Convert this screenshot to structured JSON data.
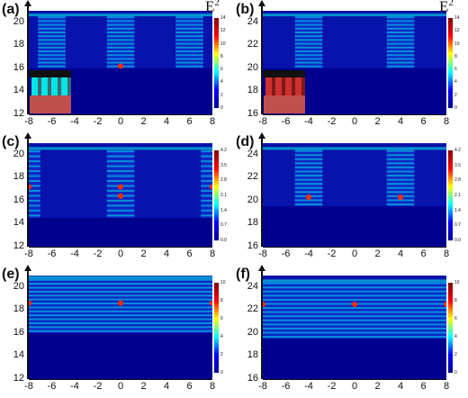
{
  "figure": {
    "colorbar_title_base": "E",
    "colorbar_title_sup": "2"
  },
  "colors": {
    "background": "#00008f",
    "field": "#1a4dff",
    "hot": "#ff2a00",
    "cyan": "#00e6e6",
    "substrate": "#c0504d"
  },
  "chart_data": [
    {
      "panel": "(a)",
      "type": "heatmap",
      "x_ticks": [
        "-8",
        "-6",
        "-4",
        "-2",
        "0",
        "2",
        "4",
        "6",
        "8"
      ],
      "y_ticks": [
        "20",
        "18",
        "16",
        "14",
        "12"
      ],
      "xlim": [
        -8,
        8
      ],
      "ylim": [
        12,
        21
      ],
      "colorbar_ticks": [
        "14",
        "12",
        "10",
        "8",
        "6",
        "4",
        "2",
        "0"
      ],
      "colorbar_range": [
        0,
        14
      ],
      "show_e2_label": true,
      "inset": "cyan",
      "bands": [
        [
          -7.2,
          -4.8
        ],
        [
          -1.2,
          1.2
        ],
        [
          4.8,
          7.2
        ]
      ],
      "stripe_range": [
        16,
        20.6
      ],
      "hot_spots": [
        [
          0,
          16.2
        ]
      ]
    },
    {
      "panel": "(b)",
      "type": "heatmap",
      "x_ticks": [
        "-8",
        "-6",
        "-4",
        "-2",
        "0",
        "2",
        "4",
        "6",
        "8"
      ],
      "y_ticks": [
        "24",
        "22",
        "20",
        "18",
        "16"
      ],
      "xlim": [
        -8,
        8
      ],
      "ylim": [
        16,
        25
      ],
      "colorbar_ticks": [
        "14",
        "12",
        "10",
        "8",
        "6",
        "4",
        "2",
        "0"
      ],
      "colorbar_range": [
        0,
        14
      ],
      "show_e2_label": true,
      "inset": "red",
      "bands": [
        [
          -5.2,
          -2.8
        ],
        [
          2.8,
          5.2
        ]
      ],
      "stripe_range": [
        20,
        24.6
      ],
      "hot_spots": []
    },
    {
      "panel": "(c)",
      "type": "heatmap",
      "x_ticks": [
        "-8",
        "-6",
        "-4",
        "-2",
        "0",
        "2",
        "4",
        "6",
        "8"
      ],
      "y_ticks": [
        "20",
        "18",
        "16",
        "14",
        "12"
      ],
      "xlim": [
        -8,
        8
      ],
      "ylim": [
        12,
        21
      ],
      "colorbar_ticks": [
        "4.2",
        "3.5",
        "2.8",
        "2.1",
        "1.4",
        "0.7",
        "0.0"
      ],
      "colorbar_range": [
        0,
        4.2
      ],
      "show_e2_label": false,
      "inset": "",
      "bands": [
        [
          -8,
          -7
        ],
        [
          -1.2,
          1.2
        ],
        [
          7,
          8
        ]
      ],
      "stripe_range": [
        14.5,
        20.5
      ],
      "hot_spots": [
        [
          0,
          17.2
        ],
        [
          -8,
          17.2
        ],
        [
          8,
          17.2
        ],
        [
          0,
          16.4
        ]
      ]
    },
    {
      "panel": "(d)",
      "type": "heatmap",
      "x_ticks": [
        "-8",
        "-6",
        "-4",
        "-2",
        "0",
        "2",
        "4",
        "6",
        "8"
      ],
      "y_ticks": [
        "24",
        "22",
        "20",
        "18",
        "16"
      ],
      "xlim": [
        -8,
        8
      ],
      "ylim": [
        16,
        25
      ],
      "colorbar_ticks": [
        "4.2",
        "3.5",
        "2.8",
        "2.1",
        "1.4",
        "0.7",
        "0.0"
      ],
      "colorbar_range": [
        0,
        4.2
      ],
      "show_e2_label": false,
      "inset": "",
      "bands": [
        [
          -5.2,
          -2.8
        ],
        [
          2.8,
          5.2
        ]
      ],
      "stripe_range": [
        19.5,
        24.5
      ],
      "hot_spots": [
        [
          -4,
          20.3
        ],
        [
          4,
          20.3
        ]
      ]
    },
    {
      "panel": "(e)",
      "type": "heatmap",
      "x_ticks": [
        "-8",
        "-6",
        "-4",
        "-2",
        "0",
        "2",
        "4",
        "6",
        "8"
      ],
      "y_ticks": [
        "20",
        "18",
        "16",
        "14",
        "12"
      ],
      "xlim": [
        -8,
        8
      ],
      "ylim": [
        12,
        21
      ],
      "colorbar_ticks": [
        "10",
        "8",
        "6",
        "4",
        "2",
        "0"
      ],
      "colorbar_range": [
        0,
        10
      ],
      "show_e2_label": false,
      "inset": "",
      "bands": [
        [
          -8,
          8
        ]
      ],
      "stripe_range": [
        16,
        20.8
      ],
      "hot_spots": [
        [
          0,
          18.6
        ],
        [
          -8,
          18.6
        ],
        [
          8,
          18.6
        ]
      ]
    },
    {
      "panel": "(f)",
      "type": "heatmap",
      "x_ticks": [
        "-8",
        "-6",
        "-4",
        "-2",
        "0",
        "2",
        "4",
        "6",
        "8"
      ],
      "y_ticks": [
        "24",
        "22",
        "20",
        "18",
        "16"
      ],
      "xlim": [
        -8,
        8
      ],
      "ylim": [
        16,
        25
      ],
      "colorbar_ticks": [
        "10",
        "8",
        "6",
        "4",
        "2",
        "0"
      ],
      "colorbar_range": [
        0,
        10
      ],
      "show_e2_label": false,
      "inset": "",
      "bands": [
        [
          -8,
          8
        ]
      ],
      "stripe_range": [
        19.5,
        24.5
      ],
      "hot_spots": [
        [
          0,
          22.5
        ],
        [
          -8,
          22.5
        ],
        [
          8,
          22.5
        ]
      ]
    }
  ]
}
